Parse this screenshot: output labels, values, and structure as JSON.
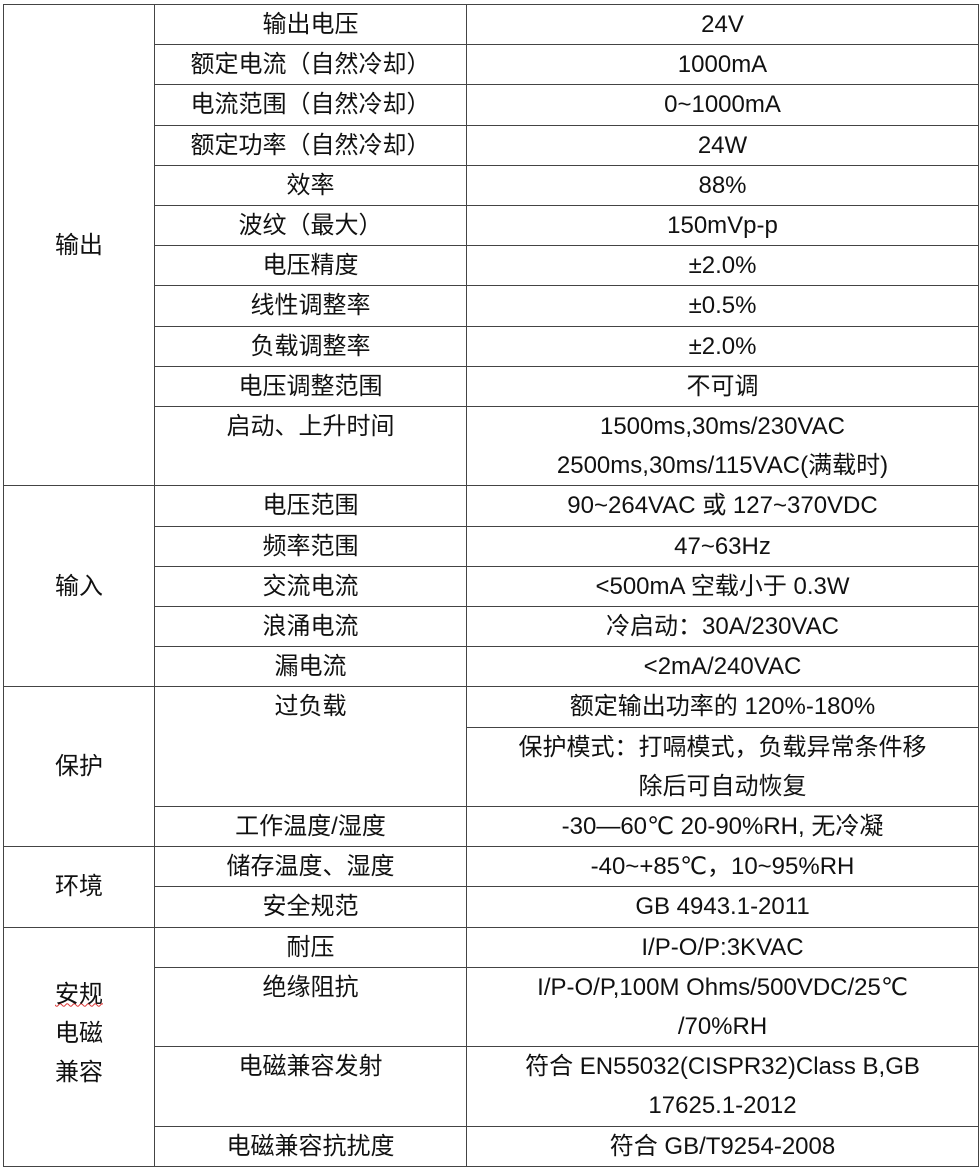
{
  "sections": [
    {
      "label": [
        "输出"
      ],
      "items": [
        {
          "param": "输出电压",
          "values": [
            [
              "24V"
            ]
          ]
        },
        {
          "param": "额定电流（自然冷却）",
          "values": [
            [
              "1000mA"
            ]
          ]
        },
        {
          "param": "电流范围（自然冷却）",
          "values": [
            [
              "0~1000mA"
            ]
          ]
        },
        {
          "param": "额定功率（自然冷却）",
          "values": [
            [
              "24W"
            ]
          ]
        },
        {
          "param": "效率",
          "values": [
            [
              "88%"
            ]
          ]
        },
        {
          "param": "波纹（最大）",
          "values": [
            [
              "150mVp-p"
            ]
          ]
        },
        {
          "param": "电压精度",
          "values": [
            [
              "±2.0%"
            ]
          ]
        },
        {
          "param": "线性调整率",
          "values": [
            [
              "±0.5%"
            ]
          ]
        },
        {
          "param": "负载调整率",
          "values": [
            [
              "±2.0%"
            ]
          ]
        },
        {
          "param": "电压调整范围",
          "values": [
            [
              "不可调"
            ]
          ]
        },
        {
          "param": "启动、上升时间",
          "values": [
            [
              "1500ms,30ms/230VAC",
              "2500ms,30ms/115VAC(满载时)"
            ]
          ]
        }
      ]
    },
    {
      "label": [
        "输入"
      ],
      "items": [
        {
          "param": "电压范围",
          "values": [
            [
              "90~264VAC 或 127~370VDC"
            ]
          ]
        },
        {
          "param": "频率范围",
          "values": [
            [
              "47~63Hz"
            ]
          ]
        },
        {
          "param": "交流电流",
          "values": [
            [
              "<500mA 空载小于 0.3W"
            ]
          ]
        },
        {
          "param": "浪涌电流",
          "values": [
            [
              "冷启动：30A/230VAC"
            ]
          ]
        },
        {
          "param": "漏电流",
          "values": [
            [
              "<2mA/240VAC"
            ]
          ]
        }
      ]
    },
    {
      "label": [
        "保护"
      ],
      "items": [
        {
          "param": "过负载",
          "values": [
            [
              "额定输出功率的 120%-180%"
            ],
            [
              "保护模式：打嗝模式，负载异常条件移",
              "除后可自动恢复"
            ]
          ]
        },
        {
          "param": "工作温度/湿度",
          "values": [
            [
              "-30—60℃  20-90%RH, 无冷凝"
            ]
          ]
        }
      ]
    },
    {
      "label": [
        "环境"
      ],
      "items": [
        {
          "param": "储存温度、湿度",
          "values": [
            [
              "-40~+85℃，10~95%RH"
            ]
          ]
        },
        {
          "param": "安全规范",
          "values": [
            [
              "GB 4943.1-2011"
            ]
          ]
        }
      ]
    },
    {
      "label": [
        "安规",
        "电磁",
        "兼容"
      ],
      "items": [
        {
          "param": "耐压",
          "values": [
            [
              "I/P-O/P:3KVAC"
            ]
          ]
        },
        {
          "param": "绝缘阻抗",
          "values": [
            [
              "I/P-O/P,100M Ohms/500VDC/25℃",
              "/70%RH"
            ]
          ]
        },
        {
          "param": "电磁兼容发射",
          "values": [
            [
              "符合 EN55032(CISPR32)Class B,GB",
              "17625.1-2012"
            ]
          ]
        },
        {
          "param": "电磁兼容抗扰度",
          "values": [
            [
              "符合 GB/T9254-2008"
            ]
          ]
        }
      ]
    }
  ]
}
